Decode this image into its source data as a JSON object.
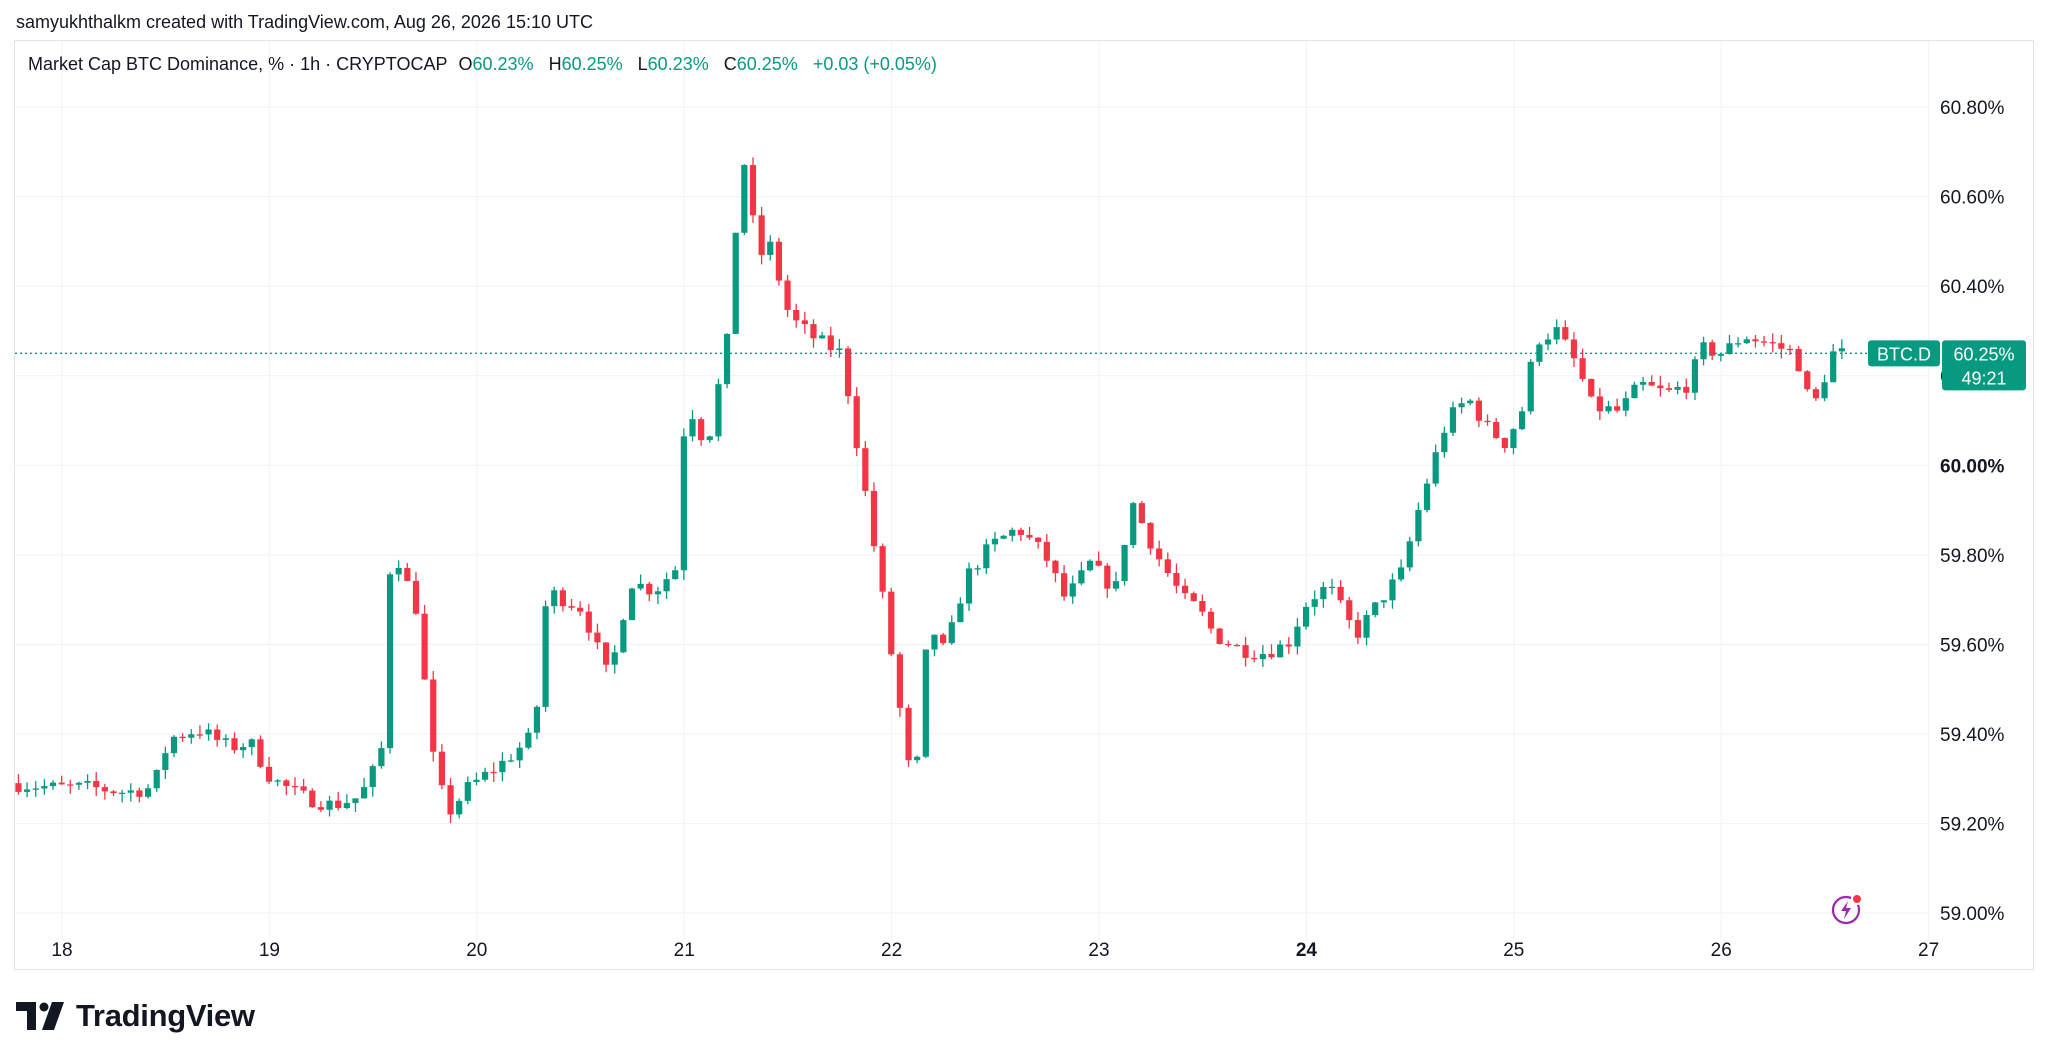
{
  "header": {
    "attribution": "samyukhthalkm created with TradingView.com, Aug 26, 2026 15:10 UTC"
  },
  "legend": {
    "symbol": "Market Cap BTC Dominance, % · 1h · CRYPTOCAP",
    "open_label": "O",
    "open": "60.23%",
    "high_label": "H",
    "high": "60.25%",
    "low_label": "L",
    "low": "60.23%",
    "close_label": "C",
    "close": "60.25%",
    "change": "+0.03 (+0.05%)"
  },
  "price_tag": {
    "ticker": "BTC.D",
    "price": "60.25%",
    "countdown": "49:21"
  },
  "brand": {
    "name": "TradingView"
  },
  "colors": {
    "up": "#089981",
    "down": "#f23645",
    "grid": "#f0f3fa",
    "text": "#131722"
  },
  "chart_data": {
    "type": "candlestick",
    "x_tick_labels": [
      "18",
      "19",
      "20",
      "21",
      "22",
      "23",
      "24",
      "25",
      "26",
      "27"
    ],
    "x_ticks": [
      18,
      19,
      20,
      21,
      22,
      23,
      24,
      25,
      26,
      27
    ],
    "xlim": [
      17.78,
      27.0
    ],
    "y_tick_labels": [
      "59.00%",
      "59.20%",
      "59.40%",
      "59.60%",
      "59.80%",
      "60.00%",
      "60.20%",
      "60.40%",
      "60.60%",
      "60.80%"
    ],
    "y_ticks": [
      59.0,
      59.2,
      59.4,
      59.6,
      59.8,
      60.0,
      60.2,
      60.4,
      60.6,
      60.8
    ],
    "ylim": [
      58.955,
      60.865
    ],
    "last_price": 60.25,
    "bold_x_tick": "24",
    "bold_y_tick": "60.00%",
    "grid": true,
    "anchors": [
      [
        17.79,
        59.29
      ],
      [
        18.0,
        59.28
      ],
      [
        18.18,
        59.28
      ],
      [
        18.35,
        59.27
      ],
      [
        18.48,
        59.28
      ],
      [
        18.56,
        59.39
      ],
      [
        18.7,
        59.41
      ],
      [
        18.85,
        59.37
      ],
      [
        18.95,
        59.38
      ],
      [
        19.05,
        59.3
      ],
      [
        19.2,
        59.26
      ],
      [
        19.35,
        59.24
      ],
      [
        19.48,
        59.26
      ],
      [
        19.58,
        59.35
      ],
      [
        19.63,
        59.83
      ],
      [
        19.75,
        59.68
      ],
      [
        19.83,
        59.35
      ],
      [
        19.9,
        59.22
      ],
      [
        20.0,
        59.28
      ],
      [
        20.18,
        59.34
      ],
      [
        20.32,
        59.4
      ],
      [
        20.38,
        59.72
      ],
      [
        20.55,
        59.68
      ],
      [
        20.68,
        59.52
      ],
      [
        20.78,
        59.74
      ],
      [
        20.9,
        59.72
      ],
      [
        21.0,
        59.77
      ],
      [
        21.05,
        60.15
      ],
      [
        21.15,
        60.04
      ],
      [
        21.25,
        60.28
      ],
      [
        21.32,
        60.71
      ],
      [
        21.4,
        60.46
      ],
      [
        21.45,
        60.5
      ],
      [
        21.55,
        60.33
      ],
      [
        21.68,
        60.28
      ],
      [
        21.8,
        60.25
      ],
      [
        21.9,
        59.98
      ],
      [
        22.0,
        59.7
      ],
      [
        22.15,
        59.25
      ],
      [
        22.22,
        59.65
      ],
      [
        22.3,
        59.58
      ],
      [
        22.4,
        59.75
      ],
      [
        22.52,
        59.82
      ],
      [
        22.65,
        59.86
      ],
      [
        22.78,
        59.8
      ],
      [
        22.88,
        59.7
      ],
      [
        23.0,
        59.78
      ],
      [
        23.12,
        59.72
      ],
      [
        23.2,
        59.92
      ],
      [
        23.32,
        59.8
      ],
      [
        23.45,
        59.7
      ],
      [
        23.52,
        59.68
      ],
      [
        23.6,
        59.62
      ],
      [
        23.72,
        59.59
      ],
      [
        23.82,
        59.58
      ],
      [
        23.95,
        59.6
      ],
      [
        24.05,
        59.7
      ],
      [
        24.15,
        59.73
      ],
      [
        24.28,
        59.62
      ],
      [
        24.4,
        59.7
      ],
      [
        24.5,
        59.76
      ],
      [
        24.6,
        59.93
      ],
      [
        24.72,
        60.1
      ],
      [
        24.82,
        60.15
      ],
      [
        24.92,
        60.08
      ],
      [
        25.0,
        60.05
      ],
      [
        25.08,
        60.12
      ],
      [
        25.15,
        60.28
      ],
      [
        25.25,
        60.3
      ],
      [
        25.35,
        60.22
      ],
      [
        25.42,
        60.13
      ],
      [
        25.55,
        60.12
      ],
      [
        25.65,
        60.18
      ],
      [
        25.78,
        60.16
      ],
      [
        25.88,
        60.18
      ],
      [
        25.95,
        60.26
      ],
      [
        26.05,
        60.25
      ],
      [
        26.15,
        60.29
      ],
      [
        26.28,
        60.27
      ],
      [
        26.4,
        60.25
      ],
      [
        26.48,
        60.12
      ],
      [
        26.58,
        60.25
      ],
      [
        26.62,
        60.25
      ]
    ]
  }
}
